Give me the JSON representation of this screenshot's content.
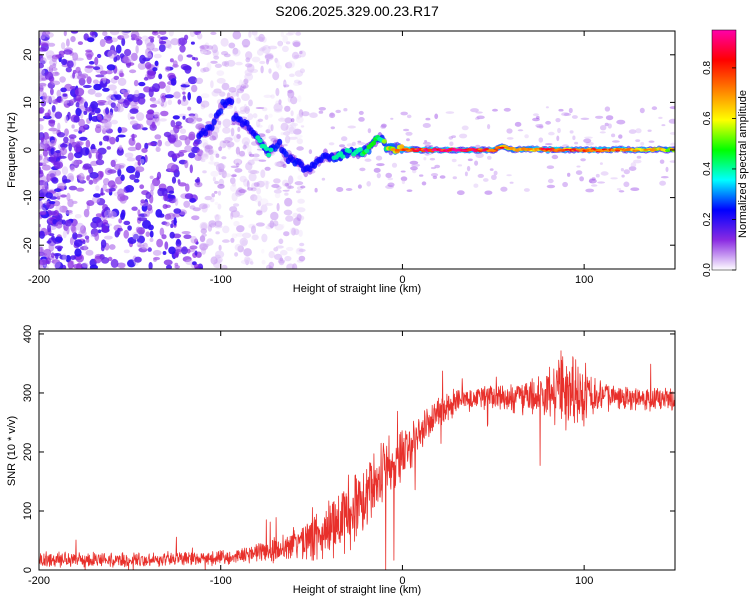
{
  "title": "S206.2025.329.00.23.R17",
  "colors": {
    "snr_line": "#e8302b",
    "axis": "#000000",
    "background": "#ffffff"
  },
  "chart_data": [
    {
      "type": "heatmap",
      "name": "spectrogram",
      "xlabel": "Height of straight line (km)",
      "ylabel": "Frequency (Hz)",
      "xlim": [
        -200,
        150
      ],
      "ylim": [
        -25,
        25
      ],
      "xticks": [
        -200,
        -100,
        0,
        100
      ],
      "xtick_labels": [
        "-200",
        "-100",
        "0",
        "100"
      ],
      "yticks": [
        -20,
        -10,
        0,
        10,
        20
      ],
      "ytick_labels": [
        "-20",
        "-10",
        "0",
        "10",
        "20"
      ],
      "colorbar": {
        "label": "Normalized spectral amplitude",
        "range": [
          0.0,
          0.95
        ],
        "ticks": [
          0.0,
          0.2,
          0.4,
          0.6,
          0.8
        ],
        "tick_labels": [
          "0.0",
          "0.2",
          "0.4",
          "0.6",
          "0.8"
        ],
        "colormap": [
          "#ffffff",
          "#8a2be2",
          "#0000ff",
          "#00ffff",
          "#00ff00",
          "#ffff00",
          "#ff8000",
          "#ff0000",
          "#ff00aa"
        ]
      },
      "noise_region": {
        "x_range": [
          -200,
          -110
        ],
        "y_range": [
          -25,
          25
        ]
      },
      "ridge": [
        {
          "x": -112,
          "y": 3.5,
          "a": 0.25
        },
        {
          "x": -105,
          "y": 4.5,
          "a": 0.3
        },
        {
          "x": -99,
          "y": 9.5,
          "a": 0.3
        },
        {
          "x": -93,
          "y": 10,
          "a": 0.3
        },
        {
          "x": -98,
          "y": 7,
          "a": 0.2
        },
        {
          "x": -90,
          "y": 6.5,
          "a": 0.3
        },
        {
          "x": -84,
          "y": 4.5,
          "a": 0.25
        },
        {
          "x": -78,
          "y": 1.5,
          "a": 0.35
        },
        {
          "x": -74,
          "y": -0.8,
          "a": 0.35
        },
        {
          "x": -68,
          "y": 1.5,
          "a": 0.3
        },
        {
          "x": -64,
          "y": -1.5,
          "a": 0.3
        },
        {
          "x": -58,
          "y": -2.5,
          "a": 0.3
        },
        {
          "x": -53,
          "y": -4.5,
          "a": 0.25
        },
        {
          "x": -48,
          "y": -3,
          "a": 0.3
        },
        {
          "x": -42,
          "y": -1,
          "a": 0.3
        },
        {
          "x": -36,
          "y": -1.5,
          "a": 0.35
        },
        {
          "x": -30,
          "y": -0.5,
          "a": 0.35
        },
        {
          "x": -24,
          "y": -0.5,
          "a": 0.4
        },
        {
          "x": -18,
          "y": 0.2,
          "a": 0.45
        },
        {
          "x": -13,
          "y": 3,
          "a": 0.4
        },
        {
          "x": -8,
          "y": 0.3,
          "a": 0.55
        },
        {
          "x": 0,
          "y": 0.2,
          "a": 0.7
        },
        {
          "x": 10,
          "y": 0,
          "a": 0.85
        },
        {
          "x": 20,
          "y": 0,
          "a": 0.9
        },
        {
          "x": 30,
          "y": 0,
          "a": 0.9
        },
        {
          "x": 40,
          "y": 0,
          "a": 0.85
        },
        {
          "x": 50,
          "y": 0,
          "a": 0.8
        },
        {
          "x": 56,
          "y": 0.8,
          "a": 0.7
        },
        {
          "x": 60,
          "y": 0.1,
          "a": 0.6
        },
        {
          "x": 70,
          "y": 0.2,
          "a": 0.7
        },
        {
          "x": 80,
          "y": 0,
          "a": 0.8
        },
        {
          "x": 90,
          "y": 0.1,
          "a": 0.75
        },
        {
          "x": 100,
          "y": 0,
          "a": 0.8
        },
        {
          "x": 110,
          "y": 0,
          "a": 0.75
        },
        {
          "x": 120,
          "y": 0.1,
          "a": 0.7
        },
        {
          "x": 130,
          "y": 0,
          "a": 0.65
        },
        {
          "x": 140,
          "y": 0.1,
          "a": 0.6
        },
        {
          "x": 150,
          "y": 0,
          "a": 0.6
        }
      ]
    },
    {
      "type": "line",
      "name": "snr",
      "xlabel": "Height of straight line (km)",
      "ylabel": "SNR (10 * v/v)",
      "xlim": [
        -200,
        150
      ],
      "ylim": [
        0,
        405
      ],
      "xticks": [
        -200,
        -100,
        0,
        100
      ],
      "xtick_labels": [
        "-200",
        "-100",
        "0",
        "100"
      ],
      "yticks": [
        0,
        100,
        200,
        300,
        400
      ],
      "ytick_labels": [
        "0",
        "100",
        "200",
        "300",
        "400"
      ],
      "series": [
        {
          "name": "SNR",
          "x": [
            -200,
            -180,
            -160,
            -140,
            -120,
            -100,
            -90,
            -80,
            -70,
            -60,
            -50,
            -40,
            -30,
            -20,
            -10,
            0,
            10,
            20,
            30,
            40,
            50,
            60,
            70,
            80,
            90,
            100,
            110,
            120,
            130,
            140,
            150
          ],
          "y": [
            18,
            17,
            18,
            17,
            19,
            20,
            23,
            28,
            35,
            45,
            55,
            68,
            95,
            130,
            165,
            195,
            235,
            268,
            285,
            292,
            295,
            288,
            295,
            300,
            305,
            298,
            295,
            293,
            292,
            290,
            291
          ],
          "spread": [
            12,
            12,
            12,
            12,
            12,
            12,
            14,
            16,
            22,
            30,
            38,
            48,
            60,
            65,
            60,
            45,
            35,
            28,
            22,
            20,
            20,
            24,
            30,
            45,
            70,
            50,
            25,
            20,
            20,
            20,
            20
          ]
        }
      ]
    }
  ]
}
